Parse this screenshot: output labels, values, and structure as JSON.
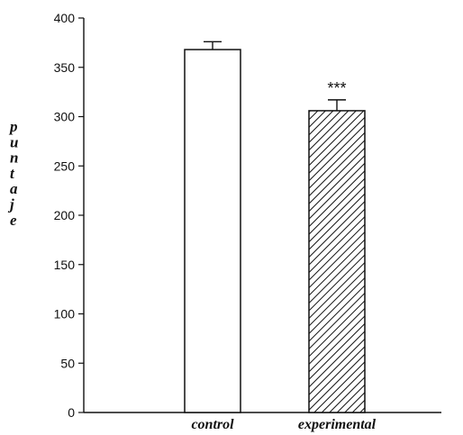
{
  "chart_data": {
    "type": "bar",
    "title": "",
    "xlabel": "",
    "ylabel": "puntaje",
    "categories": [
      "control",
      "experimental"
    ],
    "values": [
      368,
      306
    ],
    "errors": [
      8,
      11
    ],
    "annotations": [
      "",
      "***"
    ],
    "ylim": [
      0,
      400
    ],
    "yticks": [
      0,
      50,
      100,
      150,
      200,
      250,
      300,
      350,
      400
    ],
    "grid": false,
    "legend": "none",
    "styles": [
      {
        "fill": "#ffffff",
        "pattern": "none"
      },
      {
        "fill": "#ffffff",
        "pattern": "diagonal-hatch"
      }
    ],
    "colors": {
      "axis": "#111111",
      "bar_stroke": "#111111",
      "hatch": "#111111"
    }
  }
}
